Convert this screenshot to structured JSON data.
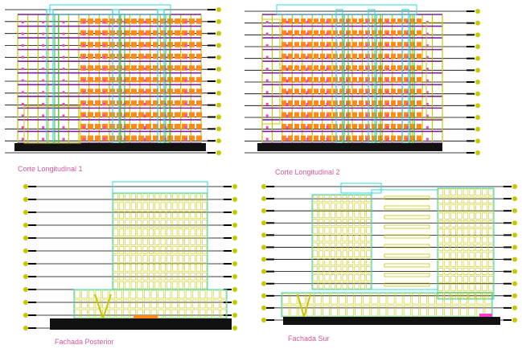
{
  "drawings": [
    {
      "id": "section-1",
      "label": "Corte Longitudinal 1"
    },
    {
      "id": "section-2",
      "label": "Corte Longitudinal 2"
    },
    {
      "id": "elevation-rear",
      "label": "Fachada Posterior"
    },
    {
      "id": "elevation-south",
      "label": "Fachada Sur"
    }
  ],
  "colors": {
    "structure": "#c8c800",
    "floor-slab": "#7a1fa0",
    "level-line": "#000000",
    "accent-orange": "#ff8a1a",
    "accent-pink": "#ff3fc8",
    "accent-cyan": "#2fd8d8",
    "accent-green": "#2bbf3a",
    "label": "#d45a9a"
  }
}
